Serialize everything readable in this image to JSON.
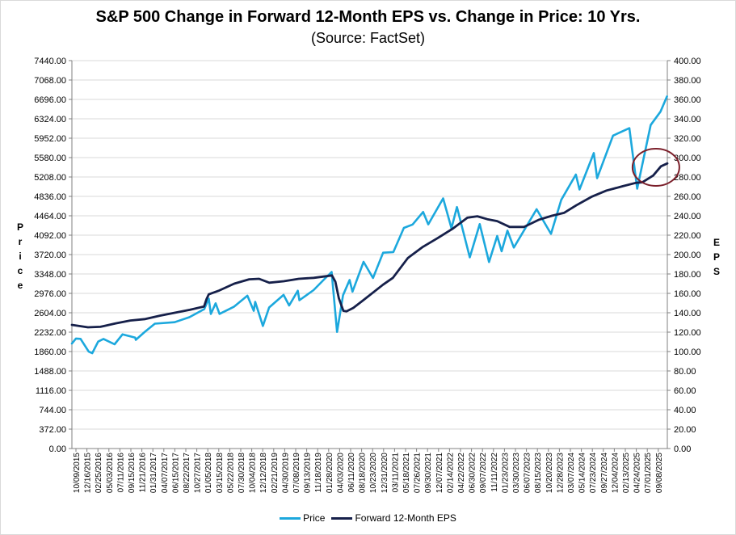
{
  "chart_data": {
    "type": "line",
    "title": "S&P 500 Change in Forward 12-Month EPS vs. Change in Price: 10 Yrs.",
    "subtitle": "(Source: FactSet)",
    "ylabel_left": "Price",
    "ylabel_right": "EPS",
    "ylim_left": [
      0,
      7440
    ],
    "ylim_right": [
      0,
      400
    ],
    "yticks_left": [
      "7440.00",
      "7068.00",
      "6696.00",
      "6324.00",
      "5952.00",
      "5580.00",
      "5208.00",
      "4836.00",
      "4464.00",
      "4092.00",
      "3720.00",
      "3348.00",
      "2976.00",
      "2604.00",
      "2232.00",
      "1860.00",
      "1488.00",
      "1116.00",
      "744.00",
      "372.00",
      "0.00"
    ],
    "yticks_right": [
      "400.00",
      "380.00",
      "360.00",
      "340.00",
      "320.00",
      "300.00",
      "280.00",
      "260.00",
      "240.00",
      "220.00",
      "200.00",
      "180.00",
      "160.00",
      "140.00",
      "120.00",
      "100.00",
      "80.00",
      "60.00",
      "40.00",
      "20.00",
      "0.00"
    ],
    "x_start": "2015-10-09",
    "x_end": "2025-10-10",
    "x_ticks": [
      "10/09/2015",
      "12/16/2015",
      "02/25/2016",
      "05/03/2016",
      "07/11/2016",
      "09/15/2016",
      "11/21/2016",
      "01/31/2017",
      "04/07/2017",
      "06/15/2017",
      "08/22/2017",
      "10/27/2017",
      "01/05/2018",
      "03/15/2018",
      "05/22/2018",
      "07/30/2018",
      "10/04/2018",
      "12/12/2018",
      "02/21/2019",
      "04/30/2019",
      "07/08/2019",
      "09/13/2019",
      "11/18/2019",
      "01/28/2020",
      "04/03/2020",
      "06/11/2020",
      "08/18/2020",
      "10/23/2020",
      "12/31/2020",
      "03/11/2021",
      "05/18/2021",
      "07/26/2021",
      "09/30/2021",
      "12/07/2021",
      "02/14/2022",
      "04/22/2022",
      "06/30/2022",
      "09/07/2022",
      "11/11/2022",
      "01/23/2023",
      "03/30/2023",
      "06/07/2023",
      "08/15/2023",
      "10/20/2023",
      "12/28/2023",
      "03/07/2024",
      "05/14/2024",
      "07/23/2024",
      "09/27/2024",
      "12/04/2024",
      "02/13/2025",
      "04/24/2025",
      "07/01/2025",
      "09/08/2025"
    ],
    "series": [
      {
        "name": "Price",
        "axis": "left",
        "color": "#1ca8dd",
        "points": [
          [
            "2015-10-09",
            2014
          ],
          [
            "2015-11-03",
            2109
          ],
          [
            "2015-12-01",
            2103
          ],
          [
            "2016-01-20",
            1859
          ],
          [
            "2016-02-11",
            1829
          ],
          [
            "2016-03-18",
            2050
          ],
          [
            "2016-04-20",
            2102
          ],
          [
            "2016-06-27",
            2000
          ],
          [
            "2016-08-15",
            2190
          ],
          [
            "2016-10-31",
            2126
          ],
          [
            "2016-11-04",
            2085
          ],
          [
            "2016-12-30",
            2239
          ],
          [
            "2017-03-01",
            2395
          ],
          [
            "2017-06-30",
            2423
          ],
          [
            "2017-09-29",
            2519
          ],
          [
            "2017-12-29",
            2674
          ],
          [
            "2018-01-26",
            2873
          ],
          [
            "2018-02-08",
            2581
          ],
          [
            "2018-03-09",
            2786
          ],
          [
            "2018-04-02",
            2582
          ],
          [
            "2018-06-29",
            2718
          ],
          [
            "2018-09-20",
            2931
          ],
          [
            "2018-10-29",
            2641
          ],
          [
            "2018-11-07",
            2813
          ],
          [
            "2018-12-24",
            2351
          ],
          [
            "2019-01-31",
            2704
          ],
          [
            "2019-04-30",
            2946
          ],
          [
            "2019-06-03",
            2744
          ],
          [
            "2019-07-26",
            3026
          ],
          [
            "2019-08-05",
            2845
          ],
          [
            "2019-10-31",
            3038
          ],
          [
            "2019-12-31",
            3231
          ],
          [
            "2020-02-19",
            3386
          ],
          [
            "2020-03-23",
            2237
          ],
          [
            "2020-04-29",
            2940
          ],
          [
            "2020-06-08",
            3232
          ],
          [
            "2020-06-26",
            3009
          ],
          [
            "2020-09-02",
            3580
          ],
          [
            "2020-10-30",
            3270
          ],
          [
            "2020-12-31",
            3756
          ],
          [
            "2021-03-04",
            3768
          ],
          [
            "2021-05-07",
            4232
          ],
          [
            "2021-06-30",
            4297
          ],
          [
            "2021-09-02",
            4537
          ],
          [
            "2021-10-04",
            4300
          ],
          [
            "2022-01-03",
            4797
          ],
          [
            "2022-02-23",
            4225
          ],
          [
            "2022-03-29",
            4631
          ],
          [
            "2022-06-16",
            3667
          ],
          [
            "2022-08-16",
            4305
          ],
          [
            "2022-10-12",
            3577
          ],
          [
            "2022-12-01",
            4076
          ],
          [
            "2022-12-28",
            3783
          ],
          [
            "2023-02-02",
            4179
          ],
          [
            "2023-03-13",
            3855
          ],
          [
            "2023-07-31",
            4589
          ],
          [
            "2023-10-27",
            4117
          ],
          [
            "2023-12-29",
            4770
          ],
          [
            "2024-03-28",
            5254
          ],
          [
            "2024-04-19",
            4967
          ],
          [
            "2024-07-16",
            5667
          ],
          [
            "2024-08-05",
            5186
          ],
          [
            "2024-11-11",
            6001
          ],
          [
            "2025-02-19",
            6144
          ],
          [
            "2025-04-08",
            4983
          ],
          [
            "2025-06-30",
            6205
          ],
          [
            "2025-08-29",
            6460
          ],
          [
            "2025-10-08",
            6753
          ]
        ]
      },
      {
        "name": "Forward 12-Month EPS",
        "axis": "right",
        "color": "#16204a",
        "points": [
          [
            "2015-10-09",
            127.5
          ],
          [
            "2016-01-15",
            125.0
          ],
          [
            "2016-04-01",
            125.5
          ],
          [
            "2016-07-01",
            129.0
          ],
          [
            "2016-10-01",
            132.0
          ],
          [
            "2017-01-01",
            133.5
          ],
          [
            "2017-04-01",
            137.0
          ],
          [
            "2017-07-01",
            140.0
          ],
          [
            "2017-10-01",
            143.0
          ],
          [
            "2017-12-28",
            146.5
          ],
          [
            "2018-01-12",
            154.0
          ],
          [
            "2018-01-26",
            159.0
          ],
          [
            "2018-04-01",
            163.0
          ],
          [
            "2018-07-01",
            170.0
          ],
          [
            "2018-10-01",
            174.5
          ],
          [
            "2018-12-01",
            175.0
          ],
          [
            "2019-02-01",
            171.0
          ],
          [
            "2019-05-01",
            172.5
          ],
          [
            "2019-08-01",
            175.0
          ],
          [
            "2019-11-01",
            176.0
          ],
          [
            "2020-02-21",
            178.5
          ],
          [
            "2020-03-13",
            172.0
          ],
          [
            "2020-04-03",
            155.0
          ],
          [
            "2020-05-01",
            142.0
          ],
          [
            "2020-05-20",
            141.5
          ],
          [
            "2020-07-01",
            145.0
          ],
          [
            "2020-09-01",
            153.0
          ],
          [
            "2020-12-31",
            169.0
          ],
          [
            "2021-03-01",
            176.0
          ],
          [
            "2021-06-01",
            196.5
          ],
          [
            "2021-09-01",
            208.0
          ],
          [
            "2021-12-01",
            217.0
          ],
          [
            "2022-03-01",
            226.5
          ],
          [
            "2022-06-01",
            238.0
          ],
          [
            "2022-08-01",
            239.5
          ],
          [
            "2022-10-01",
            236.5
          ],
          [
            "2022-12-01",
            234.5
          ],
          [
            "2023-02-15",
            228.5
          ],
          [
            "2023-05-15",
            228.5
          ],
          [
            "2023-08-15",
            236.0
          ],
          [
            "2023-11-01",
            240.0
          ],
          [
            "2024-01-15",
            243.0
          ],
          [
            "2024-04-01",
            251.0
          ],
          [
            "2024-07-01",
            259.5
          ],
          [
            "2024-10-01",
            266.0
          ],
          [
            "2025-01-10",
            270.5
          ],
          [
            "2025-04-01",
            274.0
          ],
          [
            "2025-05-10",
            274.5
          ],
          [
            "2025-07-15",
            281.5
          ],
          [
            "2025-09-01",
            291.0
          ],
          [
            "2025-10-10",
            294.0
          ]
        ]
      }
    ],
    "annotation": "dark red ellipse highlighting the recent rise in forward EPS"
  },
  "legend": {
    "price_label": "Price",
    "eps_label": "Forward 12-Month EPS"
  }
}
